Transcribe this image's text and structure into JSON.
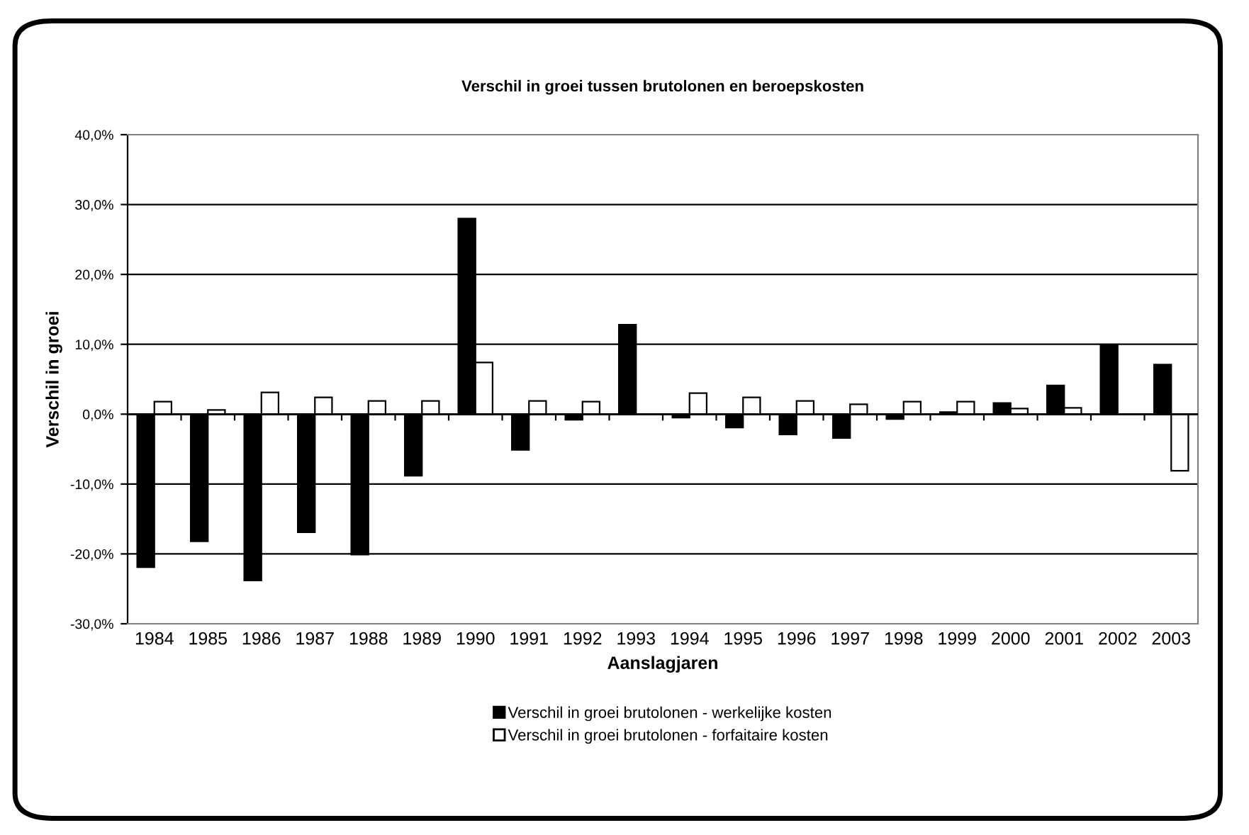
{
  "chart_data": {
    "type": "bar",
    "title": "Verschil in groei tussen brutolonen en beroepskosten",
    "xlabel": "Aanslagjaren",
    "ylabel": "Verschil in groei",
    "categories": [
      "1984",
      "1985",
      "1986",
      "1987",
      "1988",
      "1989",
      "1990",
      "1991",
      "1992",
      "1993",
      "1994",
      "1995",
      "1996",
      "1997",
      "1998",
      "1999",
      "2000",
      "2001",
      "2002",
      "2003"
    ],
    "series": [
      {
        "name": "Verschil in groei brutolonen - werkelijke kosten",
        "color": "#000000",
        "values": [
          -21.9,
          -18.2,
          -23.8,
          -16.9,
          -20.1,
          -8.8,
          28.0,
          -5.1,
          -0.8,
          12.8,
          -0.5,
          -1.9,
          -2.9,
          -3.4,
          -0.7,
          0.3,
          1.6,
          4.1,
          9.9,
          7.1
        ]
      },
      {
        "name": "Verschil in groei brutolonen - forfaitaire kosten",
        "color": "#ffffff",
        "values": [
          1.8,
          0.6,
          3.1,
          2.4,
          1.9,
          1.9,
          7.4,
          1.9,
          1.8,
          null,
          3.0,
          2.4,
          1.9,
          1.4,
          1.8,
          1.8,
          0.8,
          0.9,
          null,
          -8.1
        ]
      }
    ],
    "ylim": [
      -30,
      40
    ],
    "yticks": [
      {
        "value": -30,
        "label": "-30,0%"
      },
      {
        "value": -20,
        "label": "-20,0%"
      },
      {
        "value": -10,
        "label": "-10,0%"
      },
      {
        "value": 0,
        "label": "0,0%"
      },
      {
        "value": 10,
        "label": "10,0%"
      },
      {
        "value": 20,
        "label": "20,0%"
      },
      {
        "value": 30,
        "label": "30,0%"
      },
      {
        "value": 40,
        "label": "40,0%"
      }
    ],
    "grid": "y",
    "legend": "bottom"
  }
}
